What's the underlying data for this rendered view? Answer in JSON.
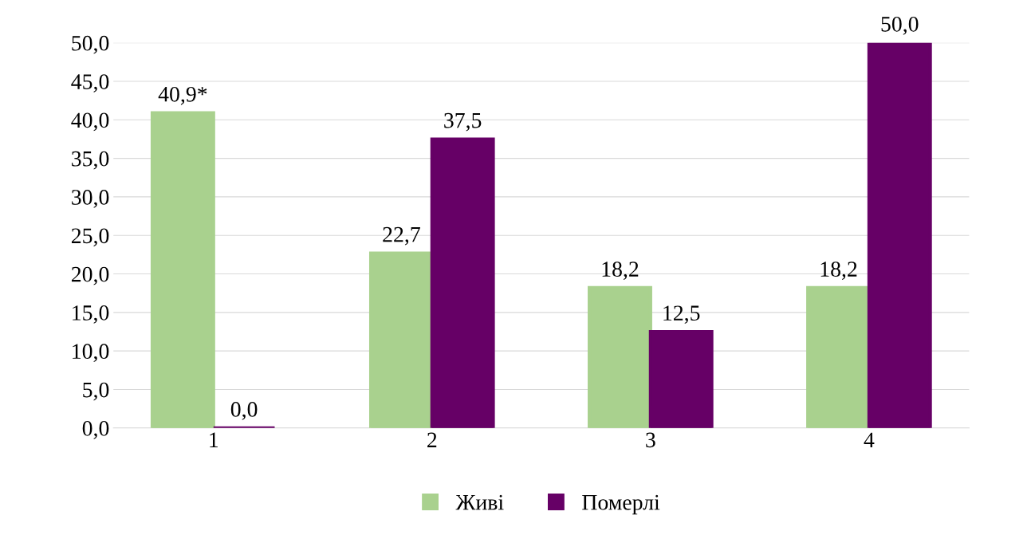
{
  "chart_data": {
    "type": "bar",
    "categories": [
      "1",
      "2",
      "3",
      "4"
    ],
    "series": [
      {
        "name": "Живі",
        "color": "#a9d18e",
        "values": [
          40.9,
          22.7,
          18.2,
          18.2
        ],
        "value_labels": [
          "40,9*",
          "22,7",
          "18,2",
          "18,2"
        ]
      },
      {
        "name": "Померлі",
        "color": "#660066",
        "values": [
          0.0,
          37.5,
          12.5,
          50.0
        ],
        "value_labels": [
          "0,0",
          "37,5",
          "12,5",
          "50,0"
        ]
      }
    ],
    "ylim": [
      0,
      50
    ],
    "yticks": [
      {
        "value": 0,
        "label": "0,0"
      },
      {
        "value": 5,
        "label": "5,0"
      },
      {
        "value": 10,
        "label": "10,0"
      },
      {
        "value": 15,
        "label": "15,0"
      },
      {
        "value": 20,
        "label": "20,0"
      },
      {
        "value": 25,
        "label": "25,0"
      },
      {
        "value": 30,
        "label": "30,0"
      },
      {
        "value": 35,
        "label": "35,0"
      },
      {
        "value": 40,
        "label": "40,0"
      },
      {
        "value": 45,
        "label": "45,0"
      },
      {
        "value": 50,
        "label": "50,0"
      }
    ],
    "grid": "y",
    "legend": "bottom"
  }
}
